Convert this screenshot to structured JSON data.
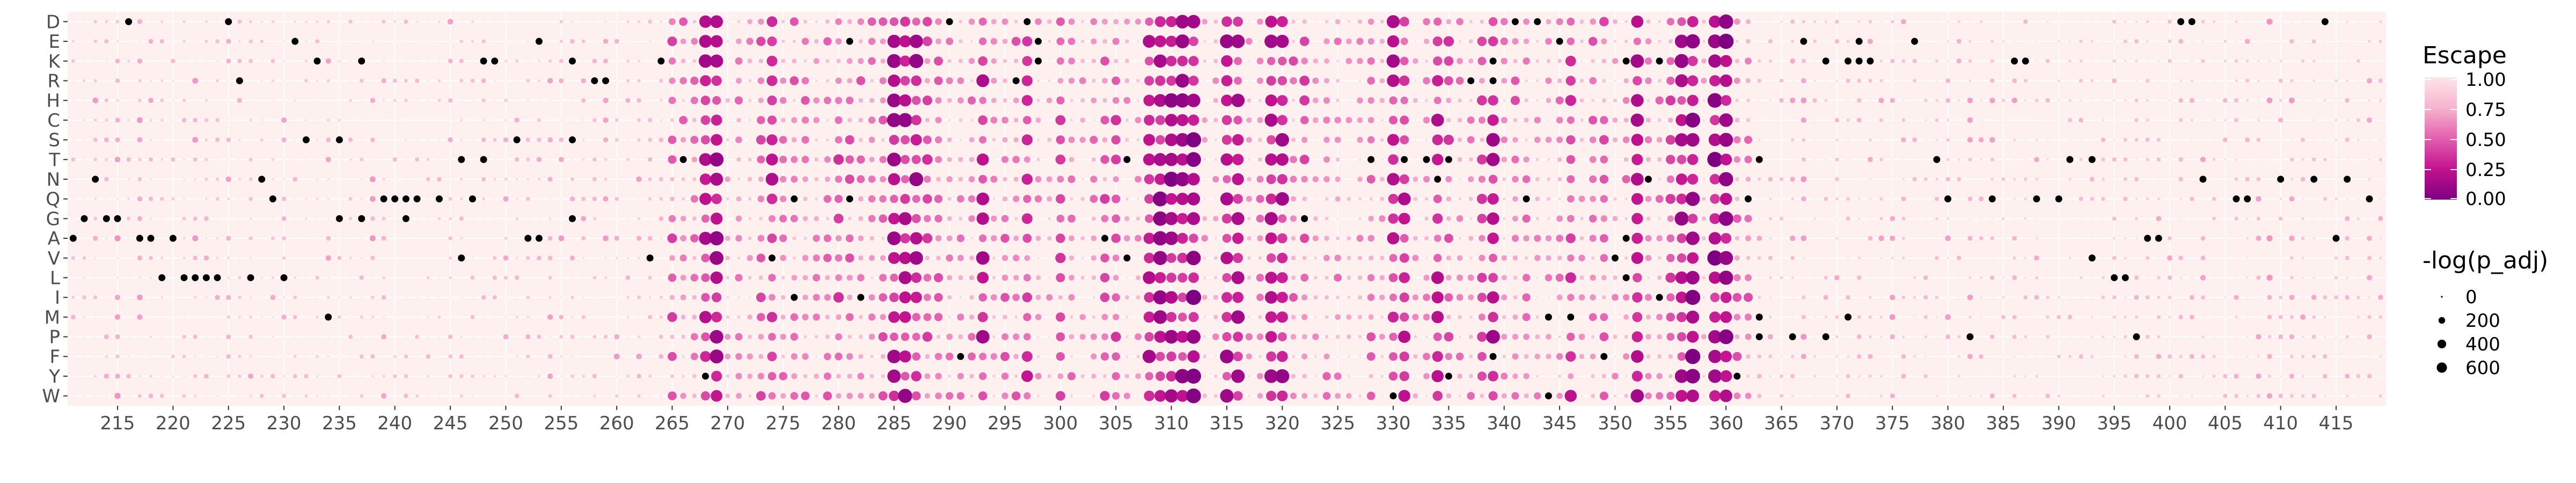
{
  "chart_data": {
    "type": "heatmap",
    "title": "",
    "xlabel": "",
    "ylabel": "",
    "x_range": [
      211,
      419
    ],
    "x_ticks": [
      215,
      220,
      225,
      230,
      235,
      240,
      245,
      250,
      255,
      260,
      265,
      270,
      275,
      280,
      285,
      290,
      295,
      300,
      305,
      310,
      315,
      320,
      325,
      330,
      335,
      340,
      345,
      350,
      355,
      360,
      365,
      370,
      375,
      380,
      385,
      390,
      395,
      400,
      405,
      410,
      415
    ],
    "y_categories": [
      "D",
      "E",
      "K",
      "R",
      "H",
      "C",
      "S",
      "T",
      "N",
      "Q",
      "G",
      "A",
      "V",
      "L",
      "I",
      "M",
      "P",
      "F",
      "Y",
      "W"
    ],
    "grid": true,
    "panel_background": "#fff0f0",
    "colors": {
      "high": "#fde6e6",
      "mid_high": "#f7b3cf",
      "mid": "#e45fb0",
      "mid_low": "#c3128f",
      "low": "#7d0080",
      "wildtype": "#000000"
    },
    "escape_legend": {
      "title": "Escape",
      "labels": [
        "1.00",
        "0.75",
        "0.50",
        "0.25",
        "0.00"
      ]
    },
    "size_legend": {
      "title": "-log(p_adj)",
      "labels": [
        "0",
        "200",
        "400",
        "600"
      ],
      "values": [
        0,
        200,
        400,
        600
      ]
    },
    "hotspot_columns": [
      {
        "x": 268,
        "escape": 0.35
      },
      {
        "x": 269,
        "escape": 0.3
      },
      {
        "x": 274,
        "escape": 0.4
      },
      {
        "x": 285,
        "escape": 0.3
      },
      {
        "x": 286,
        "escape": 0.3
      },
      {
        "x": 287,
        "escape": 0.3
      },
      {
        "x": 293,
        "escape": 0.35
      },
      {
        "x": 297,
        "escape": 0.45
      },
      {
        "x": 308,
        "escape": 0.3
      },
      {
        "x": 309,
        "escape": 0.25
      },
      {
        "x": 310,
        "escape": 0.2
      },
      {
        "x": 311,
        "escape": 0.25
      },
      {
        "x": 312,
        "escape": 0.2
      },
      {
        "x": 315,
        "escape": 0.3
      },
      {
        "x": 316,
        "escape": 0.3
      },
      {
        "x": 319,
        "escape": 0.3
      },
      {
        "x": 320,
        "escape": 0.3
      },
      {
        "x": 330,
        "escape": 0.35
      },
      {
        "x": 331,
        "escape": 0.35
      },
      {
        "x": 334,
        "escape": 0.4
      },
      {
        "x": 339,
        "escape": 0.3
      },
      {
        "x": 346,
        "escape": 0.45
      },
      {
        "x": 352,
        "escape": 0.35
      },
      {
        "x": 356,
        "escape": 0.3
      },
      {
        "x": 357,
        "escape": 0.2
      },
      {
        "x": 359,
        "escape": 0.2
      },
      {
        "x": 360,
        "escape": 0.2
      }
    ],
    "wildtype_points": [
      {
        "x": 216,
        "y": "D"
      },
      {
        "x": 225,
        "y": "D"
      },
      {
        "x": 290,
        "y": "D"
      },
      {
        "x": 297,
        "y": "D"
      },
      {
        "x": 341,
        "y": "D"
      },
      {
        "x": 343,
        "y": "D"
      },
      {
        "x": 401,
        "y": "D"
      },
      {
        "x": 402,
        "y": "D"
      },
      {
        "x": 414,
        "y": "D"
      },
      {
        "x": 231,
        "y": "E"
      },
      {
        "x": 253,
        "y": "E"
      },
      {
        "x": 281,
        "y": "E"
      },
      {
        "x": 298,
        "y": "E"
      },
      {
        "x": 345,
        "y": "E"
      },
      {
        "x": 367,
        "y": "E"
      },
      {
        "x": 372,
        "y": "E"
      },
      {
        "x": 377,
        "y": "E"
      },
      {
        "x": 233,
        "y": "K"
      },
      {
        "x": 237,
        "y": "K"
      },
      {
        "x": 248,
        "y": "K"
      },
      {
        "x": 249,
        "y": "K"
      },
      {
        "x": 256,
        "y": "K"
      },
      {
        "x": 264,
        "y": "K"
      },
      {
        "x": 298,
        "y": "K"
      },
      {
        "x": 339,
        "y": "K"
      },
      {
        "x": 351,
        "y": "K"
      },
      {
        "x": 354,
        "y": "K"
      },
      {
        "x": 369,
        "y": "K"
      },
      {
        "x": 371,
        "y": "K"
      },
      {
        "x": 372,
        "y": "K"
      },
      {
        "x": 373,
        "y": "K"
      },
      {
        "x": 386,
        "y": "K"
      },
      {
        "x": 387,
        "y": "K"
      },
      {
        "x": 226,
        "y": "R"
      },
      {
        "x": 258,
        "y": "R"
      },
      {
        "x": 259,
        "y": "R"
      },
      {
        "x": 296,
        "y": "R"
      },
      {
        "x": 337,
        "y": "R"
      },
      {
        "x": 339,
        "y": "R"
      },
      {
        "x": 232,
        "y": "S"
      },
      {
        "x": 235,
        "y": "S"
      },
      {
        "x": 251,
        "y": "S"
      },
      {
        "x": 256,
        "y": "S"
      },
      {
        "x": 246,
        "y": "T"
      },
      {
        "x": 248,
        "y": "T"
      },
      {
        "x": 266,
        "y": "T"
      },
      {
        "x": 306,
        "y": "T"
      },
      {
        "x": 328,
        "y": "T"
      },
      {
        "x": 331,
        "y": "T"
      },
      {
        "x": 333,
        "y": "T"
      },
      {
        "x": 335,
        "y": "T"
      },
      {
        "x": 363,
        "y": "T"
      },
      {
        "x": 379,
        "y": "T"
      },
      {
        "x": 391,
        "y": "T"
      },
      {
        "x": 393,
        "y": "T"
      },
      {
        "x": 213,
        "y": "N"
      },
      {
        "x": 228,
        "y": "N"
      },
      {
        "x": 334,
        "y": "N"
      },
      {
        "x": 353,
        "y": "N"
      },
      {
        "x": 403,
        "y": "N"
      },
      {
        "x": 410,
        "y": "N"
      },
      {
        "x": 413,
        "y": "N"
      },
      {
        "x": 416,
        "y": "N"
      },
      {
        "x": 229,
        "y": "Q"
      },
      {
        "x": 239,
        "y": "Q"
      },
      {
        "x": 240,
        "y": "Q"
      },
      {
        "x": 241,
        "y": "Q"
      },
      {
        "x": 242,
        "y": "Q"
      },
      {
        "x": 244,
        "y": "Q"
      },
      {
        "x": 247,
        "y": "Q"
      },
      {
        "x": 276,
        "y": "Q"
      },
      {
        "x": 281,
        "y": "Q"
      },
      {
        "x": 342,
        "y": "Q"
      },
      {
        "x": 362,
        "y": "Q"
      },
      {
        "x": 380,
        "y": "Q"
      },
      {
        "x": 384,
        "y": "Q"
      },
      {
        "x": 388,
        "y": "Q"
      },
      {
        "x": 390,
        "y": "Q"
      },
      {
        "x": 406,
        "y": "Q"
      },
      {
        "x": 407,
        "y": "Q"
      },
      {
        "x": 418,
        "y": "Q"
      },
      {
        "x": 212,
        "y": "G"
      },
      {
        "x": 214,
        "y": "G"
      },
      {
        "x": 215,
        "y": "G"
      },
      {
        "x": 235,
        "y": "G"
      },
      {
        "x": 237,
        "y": "G"
      },
      {
        "x": 241,
        "y": "G"
      },
      {
        "x": 256,
        "y": "G"
      },
      {
        "x": 322,
        "y": "G"
      },
      {
        "x": 211,
        "y": "A"
      },
      {
        "x": 217,
        "y": "A"
      },
      {
        "x": 218,
        "y": "A"
      },
      {
        "x": 220,
        "y": "A"
      },
      {
        "x": 252,
        "y": "A"
      },
      {
        "x": 253,
        "y": "A"
      },
      {
        "x": 304,
        "y": "A"
      },
      {
        "x": 351,
        "y": "A"
      },
      {
        "x": 398,
        "y": "A"
      },
      {
        "x": 399,
        "y": "A"
      },
      {
        "x": 415,
        "y": "A"
      },
      {
        "x": 246,
        "y": "V"
      },
      {
        "x": 263,
        "y": "V"
      },
      {
        "x": 274,
        "y": "V"
      },
      {
        "x": 306,
        "y": "V"
      },
      {
        "x": 350,
        "y": "V"
      },
      {
        "x": 393,
        "y": "V"
      },
      {
        "x": 219,
        "y": "L"
      },
      {
        "x": 221,
        "y": "L"
      },
      {
        "x": 222,
        "y": "L"
      },
      {
        "x": 223,
        "y": "L"
      },
      {
        "x": 224,
        "y": "L"
      },
      {
        "x": 227,
        "y": "L"
      },
      {
        "x": 230,
        "y": "L"
      },
      {
        "x": 351,
        "y": "L"
      },
      {
        "x": 395,
        "y": "L"
      },
      {
        "x": 396,
        "y": "L"
      },
      {
        "x": 276,
        "y": "I"
      },
      {
        "x": 282,
        "y": "I"
      },
      {
        "x": 354,
        "y": "I"
      },
      {
        "x": 234,
        "y": "M"
      },
      {
        "x": 344,
        "y": "M"
      },
      {
        "x": 346,
        "y": "M"
      },
      {
        "x": 363,
        "y": "M"
      },
      {
        "x": 371,
        "y": "M"
      },
      {
        "x": 363,
        "y": "P"
      },
      {
        "x": 366,
        "y": "P"
      },
      {
        "x": 369,
        "y": "P"
      },
      {
        "x": 382,
        "y": "P"
      },
      {
        "x": 397,
        "y": "P"
      },
      {
        "x": 291,
        "y": "F"
      },
      {
        "x": 339,
        "y": "F"
      },
      {
        "x": 349,
        "y": "F"
      },
      {
        "x": 268,
        "y": "Y"
      },
      {
        "x": 335,
        "y": "Y"
      },
      {
        "x": 361,
        "y": "Y"
      },
      {
        "x": 330,
        "y": "W"
      },
      {
        "x": 344,
        "y": "W"
      }
    ]
  }
}
